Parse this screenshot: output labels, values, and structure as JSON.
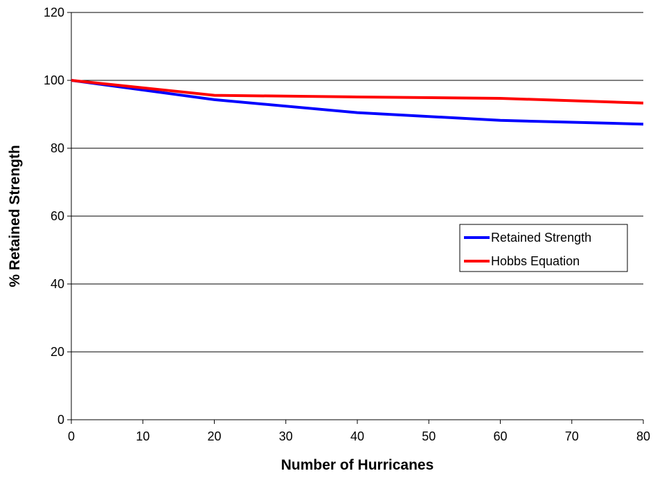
{
  "chart_data": {
    "type": "line",
    "title": "",
    "xlabel": "Number of Hurricanes",
    "ylabel": "% Retained Strength",
    "xlim": [
      0,
      80
    ],
    "ylim": [
      0,
      120
    ],
    "xticks": [
      0,
      10,
      20,
      30,
      40,
      50,
      60,
      70,
      80
    ],
    "yticks": [
      0,
      20,
      40,
      60,
      80,
      100,
      120
    ],
    "grid": "horizontal",
    "legend_position": "right",
    "series": [
      {
        "name": "Retained Strength",
        "color": "#0000FF",
        "x": [
          0,
          20,
          40,
          60,
          80
        ],
        "y": [
          100,
          94.3,
          90.5,
          88.2,
          87.1
        ]
      },
      {
        "name": "Hobbs Equation",
        "color": "#FF0000",
        "x": [
          0,
          20,
          40,
          60,
          80
        ],
        "y": [
          100,
          95.6,
          95.1,
          94.7,
          93.3
        ]
      }
    ]
  }
}
